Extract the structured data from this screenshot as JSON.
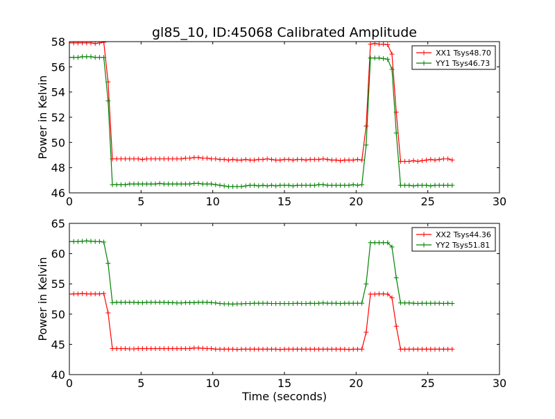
{
  "title": "gl85_10, ID:45068 Calibrated Amplitude",
  "xlabel": "Time (seconds)",
  "chart_data": [
    {
      "type": "line",
      "title": "gl85_10, ID:45068 Calibrated Amplitude",
      "xlabel": "",
      "ylabel": "Power in Kelvin",
      "xlim": [
        0,
        30
      ],
      "ylim": [
        46,
        58
      ],
      "xticks": [
        "0",
        "5",
        "10",
        "15",
        "20",
        "25",
        "30"
      ],
      "yticks": [
        "46",
        "48",
        "50",
        "52",
        "54",
        "56",
        "58"
      ],
      "legend_position": "top-right",
      "grid": false,
      "series": [
        {
          "name": "XX1 Tsys48.70",
          "color": "#ff0000",
          "x": [
            0.0,
            0.3,
            0.6,
            0.9,
            1.2,
            1.5,
            1.8,
            2.1,
            2.4,
            2.7,
            3.0,
            3.3,
            3.6,
            3.9,
            4.2,
            4.5,
            4.8,
            5.1,
            5.4,
            5.7,
            6.0,
            6.3,
            6.6,
            6.9,
            7.2,
            7.5,
            7.8,
            8.1,
            8.4,
            8.7,
            9.0,
            9.3,
            9.6,
            9.9,
            10.2,
            10.5,
            10.8,
            11.1,
            11.4,
            11.7,
            12.0,
            12.3,
            12.6,
            12.9,
            13.2,
            13.5,
            13.8,
            14.1,
            14.4,
            14.7,
            15.0,
            15.3,
            15.6,
            15.9,
            16.2,
            16.5,
            16.8,
            17.1,
            17.4,
            17.7,
            18.0,
            18.3,
            18.6,
            18.9,
            19.2,
            19.5,
            19.8,
            20.1,
            20.4,
            20.7,
            21.0,
            21.3,
            21.6,
            21.9,
            22.2,
            22.5,
            22.8,
            23.1,
            23.4,
            23.7,
            24.0,
            24.3,
            24.6,
            24.9,
            25.2,
            25.5,
            25.8,
            26.1,
            26.4,
            26.7
          ],
          "values": [
            57.9,
            57.9,
            57.9,
            57.9,
            57.9,
            57.9,
            57.85,
            57.9,
            57.95,
            54.8,
            48.7,
            48.7,
            48.7,
            48.7,
            48.7,
            48.7,
            48.7,
            48.65,
            48.7,
            48.7,
            48.7,
            48.7,
            48.7,
            48.7,
            48.7,
            48.7,
            48.7,
            48.75,
            48.75,
            48.8,
            48.8,
            48.75,
            48.75,
            48.7,
            48.7,
            48.65,
            48.65,
            48.6,
            48.65,
            48.6,
            48.6,
            48.65,
            48.6,
            48.6,
            48.65,
            48.65,
            48.7,
            48.65,
            48.6,
            48.6,
            48.65,
            48.65,
            48.6,
            48.65,
            48.65,
            48.6,
            48.65,
            48.65,
            48.65,
            48.7,
            48.65,
            48.6,
            48.6,
            48.55,
            48.6,
            48.6,
            48.6,
            48.65,
            48.6,
            51.3,
            57.8,
            57.85,
            57.8,
            57.8,
            57.75,
            57.0,
            52.4,
            48.5,
            48.5,
            48.5,
            48.55,
            48.5,
            48.55,
            48.6,
            48.65,
            48.6,
            48.65,
            48.7,
            48.7,
            48.6
          ]
        },
        {
          "name": "YY1 Tsys46.73",
          "color": "#008000",
          "x": [
            0.0,
            0.3,
            0.6,
            0.9,
            1.2,
            1.5,
            1.8,
            2.1,
            2.4,
            2.7,
            3.0,
            3.3,
            3.6,
            3.9,
            4.2,
            4.5,
            4.8,
            5.1,
            5.4,
            5.7,
            6.0,
            6.3,
            6.6,
            6.9,
            7.2,
            7.5,
            7.8,
            8.1,
            8.4,
            8.7,
            9.0,
            9.3,
            9.6,
            9.9,
            10.2,
            10.5,
            10.8,
            11.1,
            11.4,
            11.7,
            12.0,
            12.3,
            12.6,
            12.9,
            13.2,
            13.5,
            13.8,
            14.1,
            14.4,
            14.7,
            15.0,
            15.3,
            15.6,
            15.9,
            16.2,
            16.5,
            16.8,
            17.1,
            17.4,
            17.7,
            18.0,
            18.3,
            18.6,
            18.9,
            19.2,
            19.5,
            19.8,
            20.1,
            20.4,
            20.7,
            21.0,
            21.3,
            21.6,
            21.9,
            22.2,
            22.5,
            22.8,
            23.1,
            23.4,
            23.7,
            24.0,
            24.3,
            24.6,
            24.9,
            25.2,
            25.5,
            25.8,
            26.1,
            26.4,
            26.7
          ],
          "values": [
            56.75,
            56.75,
            56.75,
            56.8,
            56.8,
            56.8,
            56.75,
            56.75,
            56.75,
            53.3,
            46.65,
            46.65,
            46.65,
            46.65,
            46.7,
            46.7,
            46.7,
            46.7,
            46.7,
            46.7,
            46.7,
            46.75,
            46.7,
            46.7,
            46.7,
            46.7,
            46.7,
            46.7,
            46.7,
            46.75,
            46.75,
            46.7,
            46.7,
            46.7,
            46.65,
            46.6,
            46.55,
            46.5,
            46.5,
            46.5,
            46.5,
            46.55,
            46.6,
            46.6,
            46.55,
            46.6,
            46.55,
            46.6,
            46.55,
            46.6,
            46.6,
            46.6,
            46.55,
            46.6,
            46.6,
            46.6,
            46.6,
            46.6,
            46.65,
            46.65,
            46.6,
            46.6,
            46.6,
            46.6,
            46.6,
            46.6,
            46.65,
            46.6,
            46.65,
            49.8,
            56.7,
            56.7,
            56.7,
            56.65,
            56.6,
            55.8,
            50.75,
            46.6,
            46.6,
            46.6,
            46.55,
            46.6,
            46.6,
            46.6,
            46.55,
            46.6,
            46.6,
            46.6,
            46.6,
            46.6
          ]
        }
      ]
    },
    {
      "type": "line",
      "title": "",
      "xlabel": "Time (seconds)",
      "ylabel": "Power in Kelvin",
      "xlim": [
        0,
        30
      ],
      "ylim": [
        40,
        65
      ],
      "xticks": [
        "0",
        "5",
        "10",
        "15",
        "20",
        "25",
        "30"
      ],
      "yticks": [
        "40",
        "45",
        "50",
        "55",
        "60",
        "65"
      ],
      "legend_position": "top-right",
      "grid": false,
      "series": [
        {
          "name": "XX2 Tsys44.36",
          "color": "#ff0000",
          "x": [
            0.0,
            0.3,
            0.6,
            0.9,
            1.2,
            1.5,
            1.8,
            2.1,
            2.4,
            2.7,
            3.0,
            3.3,
            3.6,
            3.9,
            4.2,
            4.5,
            4.8,
            5.1,
            5.4,
            5.7,
            6.0,
            6.3,
            6.6,
            6.9,
            7.2,
            7.5,
            7.8,
            8.1,
            8.4,
            8.7,
            9.0,
            9.3,
            9.6,
            9.9,
            10.2,
            10.5,
            10.8,
            11.1,
            11.4,
            11.7,
            12.0,
            12.3,
            12.6,
            12.9,
            13.2,
            13.5,
            13.8,
            14.1,
            14.4,
            14.7,
            15.0,
            15.3,
            15.6,
            15.9,
            16.2,
            16.5,
            16.8,
            17.1,
            17.4,
            17.7,
            18.0,
            18.3,
            18.6,
            18.9,
            19.2,
            19.5,
            19.8,
            20.1,
            20.4,
            20.7,
            21.0,
            21.3,
            21.6,
            21.9,
            22.2,
            22.5,
            22.8,
            23.1,
            23.4,
            23.7,
            24.0,
            24.3,
            24.6,
            24.9,
            25.2,
            25.5,
            25.8,
            26.1,
            26.4,
            26.7
          ],
          "values": [
            53.3,
            53.35,
            53.35,
            53.4,
            53.35,
            53.35,
            53.35,
            53.35,
            53.4,
            50.2,
            44.3,
            44.3,
            44.3,
            44.3,
            44.25,
            44.25,
            44.3,
            44.3,
            44.3,
            44.3,
            44.3,
            44.3,
            44.3,
            44.3,
            44.3,
            44.3,
            44.3,
            44.3,
            44.3,
            44.4,
            44.4,
            44.35,
            44.3,
            44.3,
            44.2,
            44.2,
            44.2,
            44.2,
            44.2,
            44.15,
            44.2,
            44.2,
            44.2,
            44.2,
            44.2,
            44.2,
            44.2,
            44.2,
            44.2,
            44.15,
            44.2,
            44.2,
            44.2,
            44.2,
            44.2,
            44.2,
            44.2,
            44.2,
            44.2,
            44.2,
            44.2,
            44.2,
            44.2,
            44.2,
            44.2,
            44.15,
            44.2,
            44.2,
            44.2,
            47.0,
            53.3,
            53.3,
            53.35,
            53.35,
            53.3,
            52.7,
            48.0,
            44.2,
            44.2,
            44.2,
            44.2,
            44.2,
            44.2,
            44.2,
            44.2,
            44.2,
            44.2,
            44.2,
            44.2,
            44.2
          ]
        },
        {
          "name": "YY2 Tsys51.81",
          "color": "#008000",
          "x": [
            0.0,
            0.3,
            0.6,
            0.9,
            1.2,
            1.5,
            1.8,
            2.1,
            2.4,
            2.7,
            3.0,
            3.3,
            3.6,
            3.9,
            4.2,
            4.5,
            4.8,
            5.1,
            5.4,
            5.7,
            6.0,
            6.3,
            6.6,
            6.9,
            7.2,
            7.5,
            7.8,
            8.1,
            8.4,
            8.7,
            9.0,
            9.3,
            9.6,
            9.9,
            10.2,
            10.5,
            10.8,
            11.1,
            11.4,
            11.7,
            12.0,
            12.3,
            12.6,
            12.9,
            13.2,
            13.5,
            13.8,
            14.1,
            14.4,
            14.7,
            15.0,
            15.3,
            15.6,
            15.9,
            16.2,
            16.5,
            16.8,
            17.1,
            17.4,
            17.7,
            18.0,
            18.3,
            18.6,
            18.9,
            19.2,
            19.5,
            19.8,
            20.1,
            20.4,
            20.7,
            21.0,
            21.3,
            21.6,
            21.9,
            22.2,
            22.5,
            22.8,
            23.1,
            23.4,
            23.7,
            24.0,
            24.3,
            24.6,
            24.9,
            25.2,
            25.5,
            25.8,
            26.1,
            26.4,
            26.7
          ],
          "values": [
            62.0,
            62.0,
            62.0,
            62.05,
            62.1,
            62.05,
            62.0,
            62.0,
            61.9,
            58.4,
            51.9,
            51.95,
            51.95,
            51.95,
            51.95,
            51.95,
            51.9,
            51.9,
            51.95,
            51.95,
            51.95,
            51.95,
            51.95,
            51.9,
            51.9,
            51.85,
            51.85,
            51.9,
            51.9,
            51.9,
            51.95,
            51.95,
            51.95,
            51.9,
            51.85,
            51.75,
            51.7,
            51.7,
            51.65,
            51.7,
            51.7,
            51.75,
            51.75,
            51.8,
            51.8,
            51.8,
            51.8,
            51.75,
            51.75,
            51.75,
            51.75,
            51.75,
            51.75,
            51.8,
            51.75,
            51.75,
            51.8,
            51.75,
            51.8,
            51.85,
            51.8,
            51.8,
            51.8,
            51.75,
            51.8,
            51.8,
            51.8,
            51.8,
            51.8,
            55.0,
            61.8,
            61.8,
            61.8,
            61.8,
            61.8,
            61.1,
            56.0,
            51.85,
            51.85,
            51.85,
            51.8,
            51.75,
            51.8,
            51.8,
            51.8,
            51.8,
            51.8,
            51.75,
            51.8,
            51.75
          ]
        }
      ]
    }
  ]
}
